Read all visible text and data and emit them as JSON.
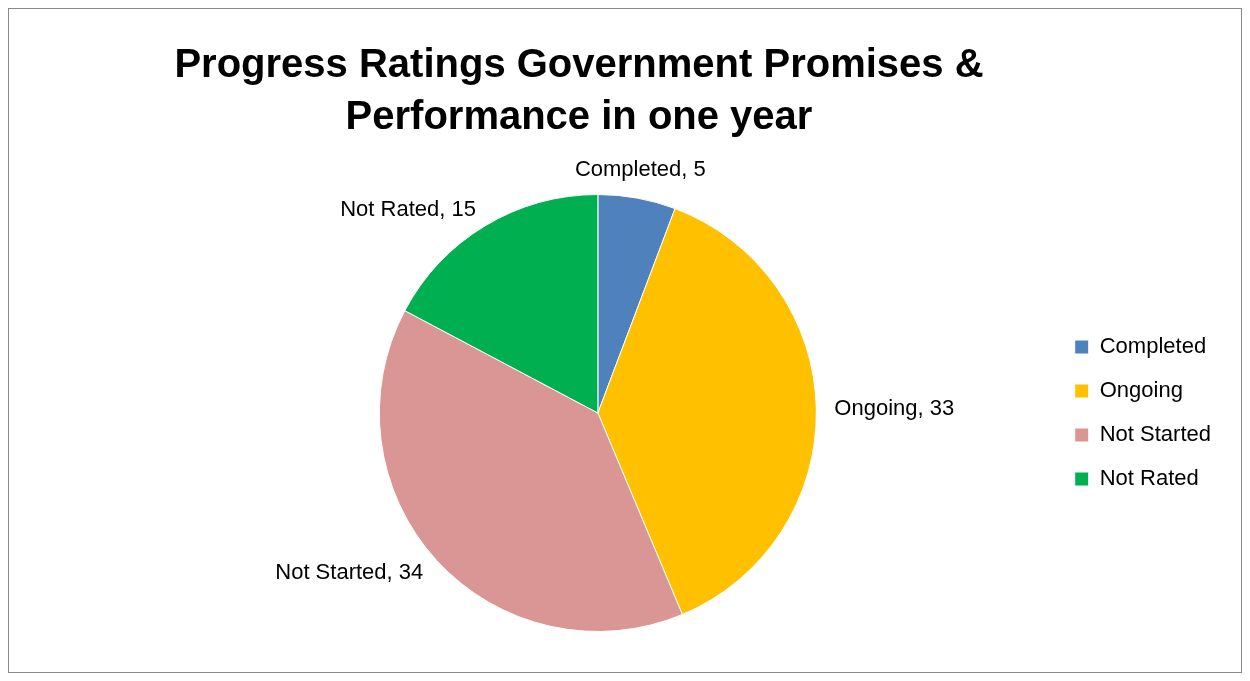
{
  "chart_data": {
    "type": "pie",
    "title": "Progress Ratings Government Promises & Performance in one year",
    "categories": [
      "Completed",
      "Ongoing",
      "Not Started",
      "Not Rated"
    ],
    "values": [
      5,
      33,
      34,
      15
    ],
    "colors": [
      "#4f81bd",
      "#ffc000",
      "#d99694",
      "#00b050"
    ],
    "value_labels": [
      "Completed, 5",
      "Ongoing, 33",
      "Not Started, 34",
      "Not Rated, 15"
    ],
    "legend": "right"
  }
}
